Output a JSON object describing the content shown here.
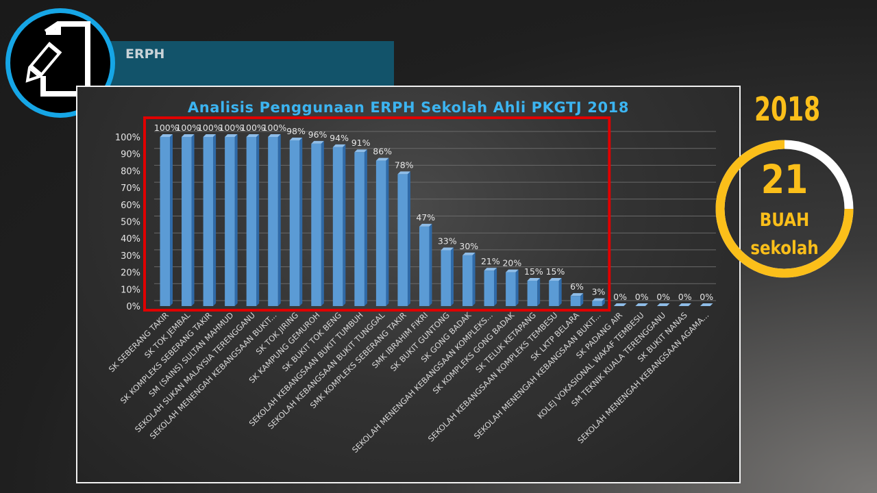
{
  "header": {
    "banner_text": "ERPH",
    "logo_icon": "pencil-document-icon"
  },
  "side": {
    "year": "2018",
    "count": "21",
    "unit1": "BUAH",
    "unit2": "sekolah",
    "ring_fraction": 0.75
  },
  "colors": {
    "bar": "#5b9bd5",
    "highlight": "#e00000",
    "accent": "#fbbf1a",
    "title": "#3cb4f0",
    "logo_ring": "#16a6e6"
  },
  "chart_data": {
    "type": "bar",
    "title": "Analisis Penggunaan ERPH Sekolah Ahli PKGTJ 2018",
    "xlabel": "",
    "ylabel": "",
    "ylim": [
      0,
      100
    ],
    "yticks": [
      "0%",
      "10%",
      "20%",
      "30%",
      "40%",
      "50%",
      "60%",
      "70%",
      "80%",
      "90%",
      "100%"
    ],
    "grid": true,
    "highlight_range": [
      0,
      20
    ],
    "categories": [
      "SK SEBERANG TAKIR",
      "SK TOK JEMBAL",
      "SK KOMPLEKS SEBERANG TAKIR",
      "SM (SAINS) SULTAN MAHMUD",
      "SEKOLAH SUKAN MALAYSIA TERENGGANU",
      "SEKOLAH MENENGAH KEBANGSAAN BUKIT...",
      "SK TOK JIRING",
      "SK KAMPUNG GEMUROH",
      "SK BUKIT TOK BENG",
      "SEKOLAH KEBANGSAAN BUKIT TUMBUH",
      "SEKOLAH KEBANGSAAN BUKIT TUNGGAL",
      "SMK KOMPLEKS SEBERANG TAKIR",
      "SMK IBRAHIM FIKRI",
      "SK BUKIT GUNTONG",
      "SK GONG BADAK",
      "SEKOLAH MENENGAH KEBANGSAAN KOMPLEKS...",
      "SK KOMPLEKS GONG BADAK",
      "SK TELUK KETAPANG",
      "SEKOLAH KEBANGSAAN KOMPLEKS TEMBESU",
      "SK LKTP BELARA",
      "SEKOLAH MENENGAH KEBANGSAAN BUKIT...",
      "SK PADANG AIR",
      "KOLEJ VOKASIONAL WAKAF TEMBESU",
      "SM TEKNIK KUALA TERENGGANU",
      "SK BUKIT NANAS",
      "SEKOLAH MENENGAH KEBANGSAAN AGAMA..."
    ],
    "values": [
      100,
      100,
      100,
      100,
      100,
      100,
      98,
      96,
      94,
      91,
      86,
      78,
      47,
      33,
      30,
      21,
      20,
      15,
      15,
      6,
      3,
      0,
      0,
      0,
      0,
      0
    ],
    "labels": [
      "100%",
      "100%",
      "100%",
      "100%",
      "100%",
      "100%",
      "98%",
      "96%",
      "94%",
      "91%",
      "86%",
      "78%",
      "47%",
      "33%",
      "30%",
      "21%",
      "20%",
      "15%",
      "15%",
      "6%",
      "3%",
      "0%",
      "0%",
      "0%",
      "0%",
      "0%"
    ]
  }
}
